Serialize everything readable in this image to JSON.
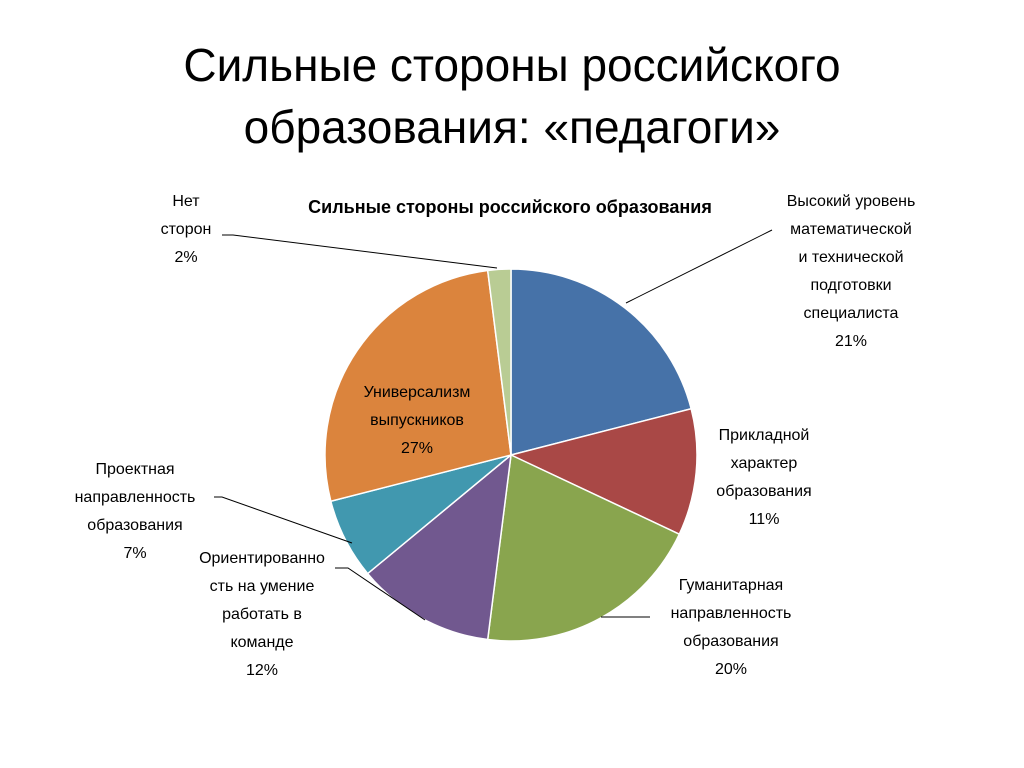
{
  "slide": {
    "title_line1": "Сильные стороны российского",
    "title_line2": "образования: «педагоги»"
  },
  "chart_data": {
    "type": "pie",
    "title": "Сильные стороны российского образования",
    "legend": "none",
    "slices": [
      {
        "label": [
          "Высокий уровень",
          "математической",
          "и технической",
          "подготовки",
          "специалиста",
          "21%"
        ],
        "value": 21,
        "color": "#4672A8"
      },
      {
        "label": [
          "Прикладной",
          "характер",
          "образования",
          "11%"
        ],
        "value": 11,
        "color": "#A94846"
      },
      {
        "label": [
          "Гуманитарная",
          "направленность",
          "образования",
          "20%"
        ],
        "value": 20,
        "color": "#89A54E"
      },
      {
        "label": [
          "Ориентированно",
          "сть на умение",
          "работать в",
          "команде",
          "12%"
        ],
        "value": 12,
        "color": "#71588F"
      },
      {
        "label": [
          "Проектная",
          "направленность",
          "образования",
          "7%"
        ],
        "value": 7,
        "color": "#4198AF"
      },
      {
        "label": [
          "Универсализм",
          "выпускников",
          "27%"
        ],
        "value": 27,
        "color": "#DB843D"
      },
      {
        "label": [
          "Нет",
          "сторон",
          "2%"
        ],
        "value": 2,
        "color": "#B9CC94"
      }
    ]
  }
}
